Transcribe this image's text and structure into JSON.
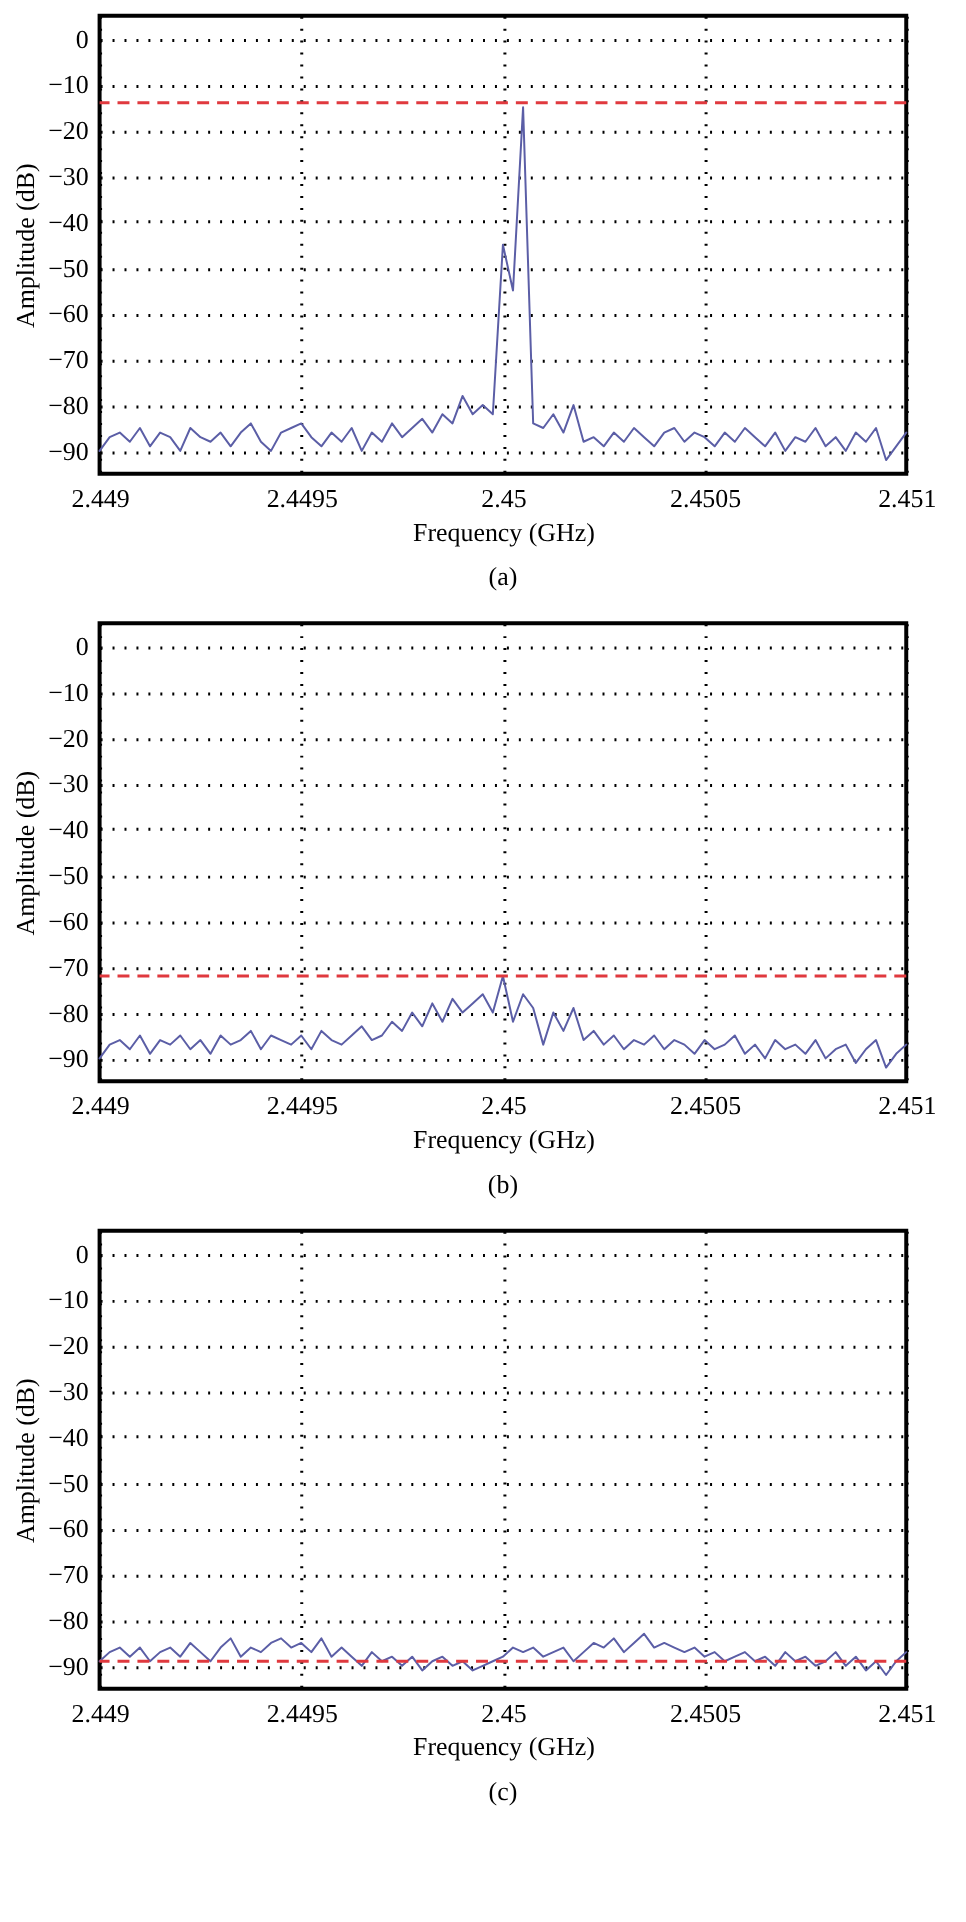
{
  "chart_data": [
    {
      "type": "line",
      "xlabel": "Frequency (GHz)",
      "ylabel": "Amplitude (dB)",
      "annotations": [
        "(a)"
      ],
      "x": [
        2.449,
        2.449025,
        2.44905,
        2.449075,
        2.4491,
        2.449125,
        2.44915,
        2.449175,
        2.4492,
        2.449225,
        2.44925,
        2.449275,
        2.4493,
        2.449325,
        2.44935,
        2.449375,
        2.4494,
        2.449425,
        2.44945,
        2.449475,
        2.4495,
        2.449525,
        2.44955,
        2.449575,
        2.4496,
        2.449625,
        2.44965,
        2.449675,
        2.4497,
        2.449725,
        2.44975,
        2.449775,
        2.4498,
        2.449825,
        2.44985,
        2.449875,
        2.4499,
        2.449925,
        2.44995,
        2.449975,
        2.45,
        2.450025,
        2.45005,
        2.450075,
        2.4501,
        2.450125,
        2.45015,
        2.450175,
        2.4502,
        2.450225,
        2.45025,
        2.450275,
        2.4503,
        2.450325,
        2.45035,
        2.450375,
        2.4504,
        2.450425,
        2.45045,
        2.450475,
        2.4505,
        2.450525,
        2.45055,
        2.450575,
        2.4506,
        2.450625,
        2.45065,
        2.450675,
        2.4507,
        2.450725,
        2.45075,
        2.450775,
        2.4508,
        2.450825,
        2.45085,
        2.450875,
        2.4509,
        2.450925,
        2.45095,
        2.450975,
        2.451
      ],
      "series": [
        {
          "color": "#5b5ea6",
          "values": [
            -90,
            -87,
            -86,
            -88,
            -85,
            -89,
            -86,
            -87,
            -90,
            -85,
            -87,
            -88,
            -86,
            -89,
            -86,
            -84,
            -88,
            -90,
            -86,
            -85,
            -84,
            -87,
            -89,
            -86,
            -88,
            -85,
            -90,
            -86,
            -88,
            -84,
            -87,
            -85,
            -83,
            -86,
            -82,
            -84,
            -78,
            -82,
            -80,
            -82,
            -45,
            -55,
            -15,
            -84,
            -85,
            -82,
            -86,
            -80,
            -88,
            -87,
            -89,
            -86,
            -88,
            -85,
            -87,
            -89,
            -86,
            -85,
            -88,
            -86,
            -87,
            -89,
            -86,
            -88,
            -85,
            -87,
            -89,
            -86,
            -90,
            -87,
            -88,
            -85,
            -89,
            -87,
            -90,
            -86,
            -88,
            -85,
            -92,
            -89,
            -86
          ]
        }
      ],
      "ref_lines": [
        {
          "axis": "y",
          "value": -14,
          "color": "#e0393e",
          "line_style": "dashed"
        }
      ],
      "xlim": [
        2.449,
        2.451
      ],
      "xticks": [
        2.449,
        2.4495,
        2.45,
        2.4505,
        2.451
      ],
      "ylim": [
        -95,
        5
      ],
      "yticks": [
        -90,
        -80,
        -70,
        -60,
        -50,
        -40,
        -30,
        -20,
        -10,
        0
      ],
      "grid": true,
      "line_style": "solid",
      "marker": "none"
    },
    {
      "type": "line",
      "xlabel": "Frequency (GHz)",
      "ylabel": "Amplitude (dB)",
      "annotations": [
        "(b)"
      ],
      "x": [
        2.449,
        2.449025,
        2.44905,
        2.449075,
        2.4491,
        2.449125,
        2.44915,
        2.449175,
        2.4492,
        2.449225,
        2.44925,
        2.449275,
        2.4493,
        2.449325,
        2.44935,
        2.449375,
        2.4494,
        2.449425,
        2.44945,
        2.449475,
        2.4495,
        2.449525,
        2.44955,
        2.449575,
        2.4496,
        2.449625,
        2.44965,
        2.449675,
        2.4497,
        2.449725,
        2.44975,
        2.449775,
        2.4498,
        2.449825,
        2.44985,
        2.449875,
        2.4499,
        2.449925,
        2.44995,
        2.449975,
        2.45,
        2.450025,
        2.45005,
        2.450075,
        2.4501,
        2.450125,
        2.45015,
        2.450175,
        2.4502,
        2.450225,
        2.45025,
        2.450275,
        2.4503,
        2.450325,
        2.45035,
        2.450375,
        2.4504,
        2.450425,
        2.45045,
        2.450475,
        2.4505,
        2.450525,
        2.45055,
        2.450575,
        2.4506,
        2.450625,
        2.45065,
        2.450675,
        2.4507,
        2.450725,
        2.45075,
        2.450775,
        2.4508,
        2.450825,
        2.45085,
        2.450875,
        2.4509,
        2.450925,
        2.45095,
        2.450975,
        2.451
      ],
      "series": [
        {
          "color": "#5b5ea6",
          "values": [
            -90,
            -87,
            -86,
            -88,
            -85,
            -89,
            -86,
            -87,
            -85,
            -88,
            -86,
            -89,
            -85,
            -87,
            -86,
            -84,
            -88,
            -85,
            -86,
            -87,
            -85,
            -88,
            -84,
            -86,
            -87,
            -85,
            -83,
            -86,
            -85,
            -82,
            -84,
            -80,
            -83,
            -78,
            -82,
            -77,
            -80,
            -78,
            -76,
            -80,
            -72,
            -82,
            -76,
            -79,
            -87,
            -80,
            -84,
            -79,
            -86,
            -84,
            -87,
            -85,
            -88,
            -86,
            -87,
            -85,
            -88,
            -86,
            -87,
            -89,
            -86,
            -88,
            -87,
            -85,
            -89,
            -87,
            -90,
            -86,
            -88,
            -87,
            -89,
            -86,
            -90,
            -88,
            -87,
            -91,
            -88,
            -86,
            -92,
            -89,
            -87
          ]
        }
      ],
      "ref_lines": [
        {
          "axis": "y",
          "value": -72,
          "color": "#e0393e",
          "line_style": "dashed"
        }
      ],
      "xlim": [
        2.449,
        2.451
      ],
      "xticks": [
        2.449,
        2.4495,
        2.45,
        2.4505,
        2.451
      ],
      "ylim": [
        -95,
        5
      ],
      "yticks": [
        -90,
        -80,
        -70,
        -60,
        -50,
        -40,
        -30,
        -20,
        -10,
        0
      ],
      "grid": true,
      "line_style": "solid",
      "marker": "none"
    },
    {
      "type": "line",
      "xlabel": "Frequency (GHz)",
      "ylabel": "Amplitude (dB)",
      "annotations": [
        "(c)"
      ],
      "x": [
        2.449,
        2.449025,
        2.44905,
        2.449075,
        2.4491,
        2.449125,
        2.44915,
        2.449175,
        2.4492,
        2.449225,
        2.44925,
        2.449275,
        2.4493,
        2.449325,
        2.44935,
        2.449375,
        2.4494,
        2.449425,
        2.44945,
        2.449475,
        2.4495,
        2.449525,
        2.44955,
        2.449575,
        2.4496,
        2.449625,
        2.44965,
        2.449675,
        2.4497,
        2.449725,
        2.44975,
        2.449775,
        2.4498,
        2.449825,
        2.44985,
        2.449875,
        2.4499,
        2.449925,
        2.44995,
        2.449975,
        2.45,
        2.450025,
        2.45005,
        2.450075,
        2.4501,
        2.450125,
        2.45015,
        2.450175,
        2.4502,
        2.450225,
        2.45025,
        2.450275,
        2.4503,
        2.450325,
        2.45035,
        2.450375,
        2.4504,
        2.450425,
        2.45045,
        2.450475,
        2.4505,
        2.450525,
        2.45055,
        2.450575,
        2.4506,
        2.450625,
        2.45065,
        2.450675,
        2.4507,
        2.450725,
        2.45075,
        2.450775,
        2.4508,
        2.450825,
        2.45085,
        2.450875,
        2.4509,
        2.450925,
        2.45095,
        2.450975,
        2.451
      ],
      "series": [
        {
          "color": "#5b5ea6",
          "values": [
            -89,
            -87,
            -86,
            -88,
            -86,
            -89,
            -87,
            -86,
            -88,
            -85,
            -87,
            -89,
            -86,
            -84,
            -88,
            -86,
            -87,
            -85,
            -84,
            -86,
            -85,
            -87,
            -84,
            -88,
            -86,
            -88,
            -90,
            -87,
            -89,
            -88,
            -90,
            -88,
            -91,
            -89,
            -88,
            -90,
            -89,
            -91,
            -90,
            -89,
            -88,
            -86,
            -87,
            -86,
            -88,
            -87,
            -86,
            -89,
            -87,
            -85,
            -86,
            -84,
            -87,
            -85,
            -83,
            -86,
            -85,
            -86,
            -87,
            -86,
            -88,
            -87,
            -89,
            -88,
            -87,
            -89,
            -88,
            -90,
            -87,
            -89,
            -88,
            -90,
            -89,
            -87,
            -90,
            -88,
            -91,
            -89,
            -92,
            -89,
            -87
          ]
        }
      ],
      "ref_lines": [
        {
          "axis": "y",
          "value": -89,
          "color": "#e0393e",
          "line_style": "dashed"
        }
      ],
      "xlim": [
        2.449,
        2.451
      ],
      "xticks": [
        2.449,
        2.4495,
        2.45,
        2.4505,
        2.451
      ],
      "ylim": [
        -95,
        5
      ],
      "yticks": [
        -90,
        -80,
        -70,
        -60,
        -50,
        -40,
        -30,
        -20,
        -10,
        0
      ],
      "grid": true,
      "line_style": "solid",
      "marker": "none"
    }
  ]
}
